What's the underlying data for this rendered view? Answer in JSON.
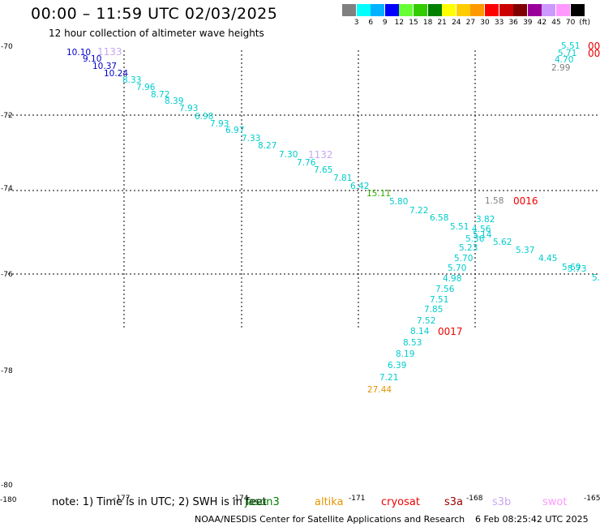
{
  "header": {
    "title": "00:00 – 11:59 UTC 02/03/2025",
    "subtitle": "12 hour collection of altimeter wave heights"
  },
  "scale": {
    "colors": [
      "#808080",
      "#00ffff",
      "#00b2ff",
      "#0000ff",
      "#66ff33",
      "#33cc00",
      "#008000",
      "#ffff00",
      "#ffcc00",
      "#ff9900",
      "#ff0000",
      "#cc0000",
      "#800000",
      "#990099",
      "#cc99ff",
      "#ff99ff",
      "#000000"
    ],
    "labels": [
      "3",
      "6",
      "9",
      "12",
      "15",
      "18",
      "21",
      "24",
      "27",
      "30",
      "33",
      "36",
      "39",
      "42",
      "45",
      "70",
      "(ft)"
    ]
  },
  "axes": {
    "lat_labels": [
      "-70",
      "-72",
      "-74",
      "-76",
      "-78",
      "-80"
    ],
    "lon_labels": [
      "-180",
      "-177",
      "-174",
      "-171",
      "-168",
      "-165"
    ]
  },
  "tracks": [
    {
      "value": "10.10",
      "color": "#0000cc"
    },
    {
      "value": "9.10",
      "color": "#0000cc"
    },
    {
      "value": "10.37",
      "color": "#0000cc"
    },
    {
      "value": "10.24",
      "color": "#0000cc"
    },
    {
      "value": "8.33",
      "color": "#00cccc"
    },
    {
      "value": "7.96",
      "color": "#00cccc"
    },
    {
      "value": "8.72",
      "color": "#00cccc"
    },
    {
      "value": "8.39",
      "color": "#00cccc"
    },
    {
      "value": "7.93",
      "color": "#00cccc"
    },
    {
      "value": "6.98",
      "color": "#00cccc"
    },
    {
      "value": "7.93",
      "color": "#00cccc"
    },
    {
      "value": "6.97",
      "color": "#00cccc"
    },
    {
      "value": "7.33",
      "color": "#00cccc"
    },
    {
      "value": "8.27",
      "color": "#00cccc"
    },
    {
      "value": "7.30",
      "color": "#00cccc"
    },
    {
      "value": "7.76",
      "color": "#00cccc"
    },
    {
      "value": "7.65",
      "color": "#00cccc"
    },
    {
      "value": "7.81",
      "color": "#00cccc"
    },
    {
      "value": "6.42",
      "color": "#00cccc"
    },
    {
      "value": "15.11",
      "color": "#33aa00"
    },
    {
      "value": "5.80",
      "color": "#00cccc"
    },
    {
      "value": "7.22",
      "color": "#00cccc"
    },
    {
      "value": "6.58",
      "color": "#00cccc"
    },
    {
      "value": "5.51",
      "color": "#00cccc"
    },
    {
      "value": "3.82",
      "color": "#00cccc"
    },
    {
      "value": "4.56",
      "color": "#00cccc"
    },
    {
      "value": "5.14",
      "color": "#00cccc"
    },
    {
      "value": "5.36",
      "color": "#00cccc"
    },
    {
      "value": "5.62",
      "color": "#00cccc"
    },
    {
      "value": "5.23",
      "color": "#00cccc"
    },
    {
      "value": "5.37",
      "color": "#00cccc"
    },
    {
      "value": "5.70",
      "color": "#00cccc"
    },
    {
      "value": "4.45",
      "color": "#00cccc"
    },
    {
      "value": "5.70",
      "color": "#00cccc"
    },
    {
      "value": "5.69",
      "color": "#00cccc"
    },
    {
      "value": "5.73",
      "color": "#00cccc"
    },
    {
      "value": "5.",
      "color": "#00cccc"
    },
    {
      "value": "4.98",
      "color": "#00cccc"
    },
    {
      "value": "7.56",
      "color": "#00cccc"
    },
    {
      "value": "7.51",
      "color": "#00cccc"
    },
    {
      "value": "7.85",
      "color": "#00cccc"
    },
    {
      "value": "7.52",
      "color": "#00cccc"
    },
    {
      "value": "8.14",
      "color": "#00cccc"
    },
    {
      "value": "8.53",
      "color": "#00cccc"
    },
    {
      "value": "8.19",
      "color": "#00cccc"
    },
    {
      "value": "6.39",
      "color": "#00cccc"
    },
    {
      "value": "7.21",
      "color": "#00cccc"
    },
    {
      "value": "27.44",
      "color": "#e69500"
    },
    {
      "value": "5.51",
      "color": "#00cccc"
    },
    {
      "value": "5.71",
      "color": "#00cccc"
    },
    {
      "value": "4.70",
      "color": "#00cccc"
    },
    {
      "value": "2.99",
      "color": "#808080"
    },
    {
      "value": "1.58",
      "color": "#808080"
    }
  ],
  "pass_labels": [
    {
      "text": "1133",
      "color": "#c8a8f0"
    },
    {
      "text": "1132",
      "color": "#c8a8f0"
    },
    {
      "text": "0016",
      "color": "#ee0000"
    },
    {
      "text": "0017",
      "color": "#ee0000"
    },
    {
      "text": "00",
      "color": "#ee0000"
    },
    {
      "text": "00",
      "color": "#ee0000"
    }
  ],
  "footer": {
    "note": "note: 1) Time is in UTC; 2) SWH is in feet",
    "legend": [
      {
        "name": "jason3",
        "color": "#008000"
      },
      {
        "name": "altika",
        "color": "#e69500"
      },
      {
        "name": "cryosat",
        "color": "#ee0000"
      },
      {
        "name": "s3a",
        "color": "#990000"
      },
      {
        "name": "s3b",
        "color": "#c8a8f0"
      },
      {
        "name": "swot",
        "color": "#ff99ff"
      }
    ],
    "credit": "NOAA/NESDIS Center for Satellite Applications and Research",
    "timestamp": "6 Feb 08:25:42 UTC 2025"
  }
}
